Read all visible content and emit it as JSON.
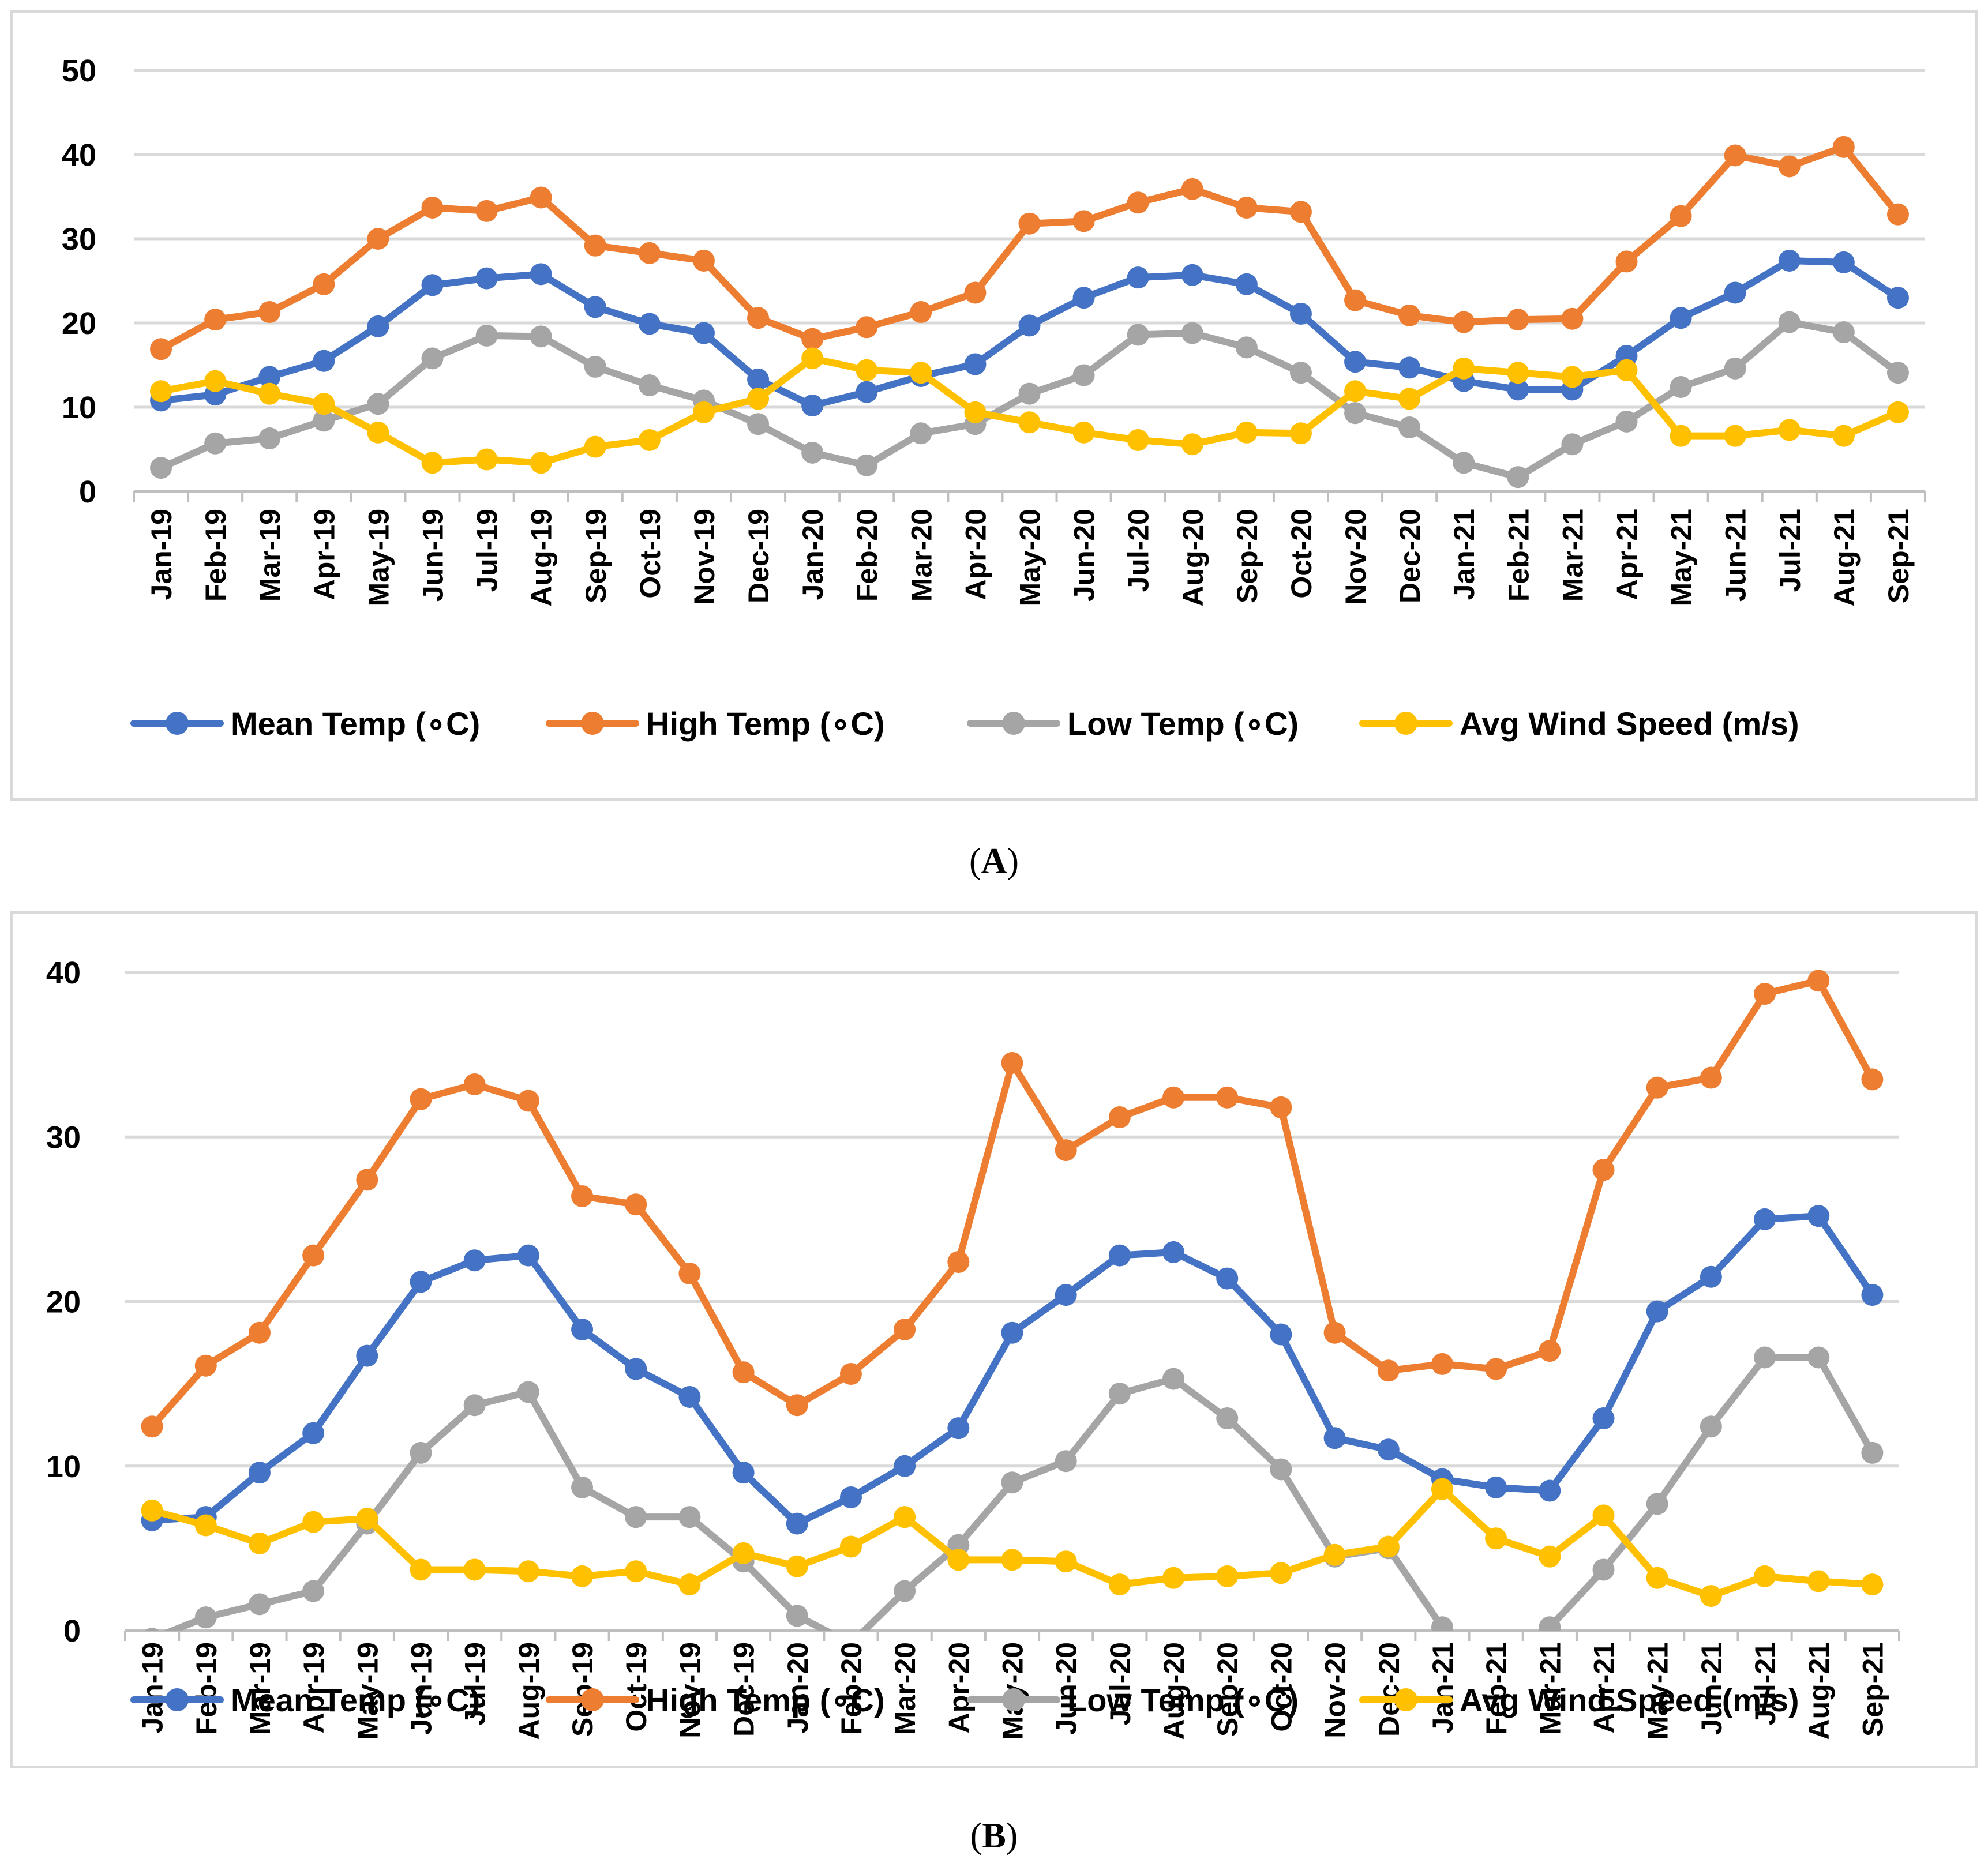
{
  "chart_data": [
    {
      "type": "line",
      "panel_label": "A",
      "categories": [
        "Jan-19",
        "Feb-19",
        "Mar-19",
        "Apr-19",
        "May-19",
        "Jun-19",
        "Jul-19",
        "Aug-19",
        "Sep-19",
        "Oct-19",
        "Nov-19",
        "Dec-19",
        "Jan-20",
        "Feb-20",
        "Mar-20",
        "Apr-20",
        "May-20",
        "Jun-20",
        "Jul-20",
        "Aug-20",
        "Sep-20",
        "Oct-20",
        "Nov-20",
        "Dec-20",
        "Jan-21",
        "Feb-21",
        "Mar-21",
        "Apr-21",
        "May-21",
        "Jun-21",
        "Jul-21",
        "Aug-21",
        "Sep-21"
      ],
      "ylim": [
        0,
        50
      ],
      "yticks": [
        0,
        10,
        20,
        30,
        40,
        50
      ],
      "grid": true,
      "legend_position": "bottom",
      "series": [
        {
          "name": "Mean Temp (∘C)",
          "color": "#4472c4",
          "values": [
            10.8,
            11.5,
            13.6,
            15.5,
            19.6,
            24.5,
            25.3,
            25.8,
            21.9,
            19.9,
            18.8,
            13.3,
            10.2,
            11.8,
            13.7,
            15.1,
            19.7,
            23.0,
            25.4,
            25.7,
            24.6,
            21.1,
            15.4,
            14.7,
            13.1,
            12.1,
            12.1,
            16.1,
            20.6,
            23.6,
            27.4,
            27.2,
            23.0
          ]
        },
        {
          "name": "High Temp (∘C)",
          "color": "#ed7d31",
          "values": [
            16.9,
            20.4,
            21.3,
            24.6,
            30.0,
            33.7,
            33.3,
            34.9,
            29.2,
            28.3,
            27.4,
            20.6,
            18.1,
            19.5,
            21.3,
            23.6,
            31.8,
            32.1,
            34.3,
            35.9,
            33.7,
            33.2,
            22.7,
            20.9,
            20.1,
            20.4,
            20.5,
            27.3,
            32.7,
            39.9,
            38.6,
            40.9,
            32.9
          ]
        },
        {
          "name": "Low Temp (∘C)",
          "color": "#a5a5a5",
          "values": [
            2.8,
            5.7,
            6.3,
            8.4,
            10.4,
            15.8,
            18.5,
            18.4,
            14.8,
            12.6,
            10.8,
            8.0,
            4.6,
            3.1,
            6.9,
            8.0,
            11.6,
            13.8,
            18.6,
            18.8,
            17.1,
            14.1,
            9.3,
            7.6,
            3.4,
            1.7,
            5.6,
            8.3,
            12.4,
            14.6,
            20.1,
            18.9,
            14.1
          ]
        },
        {
          "name": "Avg Wind Speed (m/s)",
          "color": "#ffc000",
          "values": [
            11.9,
            13.1,
            11.6,
            10.4,
            7.0,
            3.4,
            3.8,
            3.4,
            5.3,
            6.1,
            9.4,
            11.0,
            15.8,
            14.4,
            14.1,
            9.4,
            8.2,
            7.0,
            6.1,
            5.6,
            7.0,
            6.9,
            11.9,
            11.0,
            14.6,
            14.1,
            13.6,
            14.4,
            6.6,
            6.6,
            7.3,
            6.6,
            9.4
          ]
        }
      ]
    },
    {
      "type": "line",
      "panel_label": "B",
      "categories": [
        "Jan-19",
        "Feb-19",
        "Mar-19",
        "Apr-19",
        "May-19",
        "Jun-19",
        "Jul-19",
        "Aug-19",
        "Sep-19",
        "Oct-19",
        "Nov-19",
        "Dec-19",
        "Jan-20",
        "Feb-20",
        "Mar-20",
        "Apr-20",
        "May-20",
        "Jun-20",
        "Jul-20",
        "Aug-20",
        "Sep-20",
        "Oct-20",
        "Nov-20",
        "Dec-20",
        "Jan-21",
        "Feb-21",
        "Mar-21",
        "Apr-21",
        "May-21",
        "Jun-21",
        "Jul-21",
        "Aug-21",
        "Sep-21"
      ],
      "ylim": [
        0,
        40
      ],
      "yticks": [
        0,
        10,
        20,
        30,
        40
      ],
      "grid": true,
      "legend_position": "bottom",
      "series": [
        {
          "name": "Mean Temp (∘C)",
          "color": "#4472c4",
          "values": [
            6.7,
            6.9,
            9.6,
            12.0,
            16.7,
            21.2,
            22.5,
            22.8,
            18.3,
            15.9,
            14.2,
            9.6,
            6.5,
            8.1,
            10.0,
            12.3,
            18.1,
            20.4,
            22.8,
            23.0,
            21.4,
            18.0,
            11.7,
            11.0,
            9.2,
            8.7,
            8.5,
            12.9,
            19.4,
            21.5,
            25.0,
            25.2,
            20.4
          ]
        },
        {
          "name": "High Temp (∘C)",
          "color": "#ed7d31",
          "values": [
            12.4,
            16.1,
            18.1,
            22.8,
            27.4,
            32.3,
            33.2,
            32.2,
            26.4,
            25.9,
            21.7,
            15.7,
            13.7,
            15.6,
            18.3,
            22.4,
            34.5,
            29.2,
            31.2,
            32.4,
            32.4,
            31.8,
            18.1,
            15.8,
            16.2,
            15.9,
            17.0,
            28.0,
            33.0,
            33.6,
            38.7,
            39.5,
            33.5
          ]
        },
        {
          "name": "Low Temp (∘C)",
          "color": "#a5a5a5",
          "values": [
            -0.5,
            0.8,
            1.6,
            2.4,
            6.5,
            10.8,
            13.7,
            14.5,
            8.7,
            6.9,
            6.9,
            4.2,
            0.9,
            -0.8,
            2.4,
            5.2,
            9.0,
            10.3,
            14.4,
            15.3,
            12.9,
            9.8,
            4.5,
            5.0,
            0.2,
            -3.0,
            0.2,
            3.7,
            7.7,
            12.4,
            16.6,
            16.6,
            10.8
          ]
        },
        {
          "name": "Avg Wind Speed (m/s)",
          "color": "#ffc000",
          "values": [
            7.3,
            6.4,
            5.3,
            6.6,
            6.8,
            3.7,
            3.7,
            3.6,
            3.3,
            3.6,
            2.8,
            4.7,
            3.9,
            5.1,
            6.9,
            4.3,
            4.3,
            4.2,
            2.8,
            3.2,
            3.3,
            3.5,
            4.6,
            5.1,
            8.6,
            5.6,
            4.5,
            7.0,
            3.2,
            2.1,
            3.3,
            3.0,
            2.8
          ]
        }
      ]
    }
  ],
  "captions": {
    "a": "(A)",
    "a_letter": "A",
    "b": "(B)",
    "b_letter": "B"
  }
}
